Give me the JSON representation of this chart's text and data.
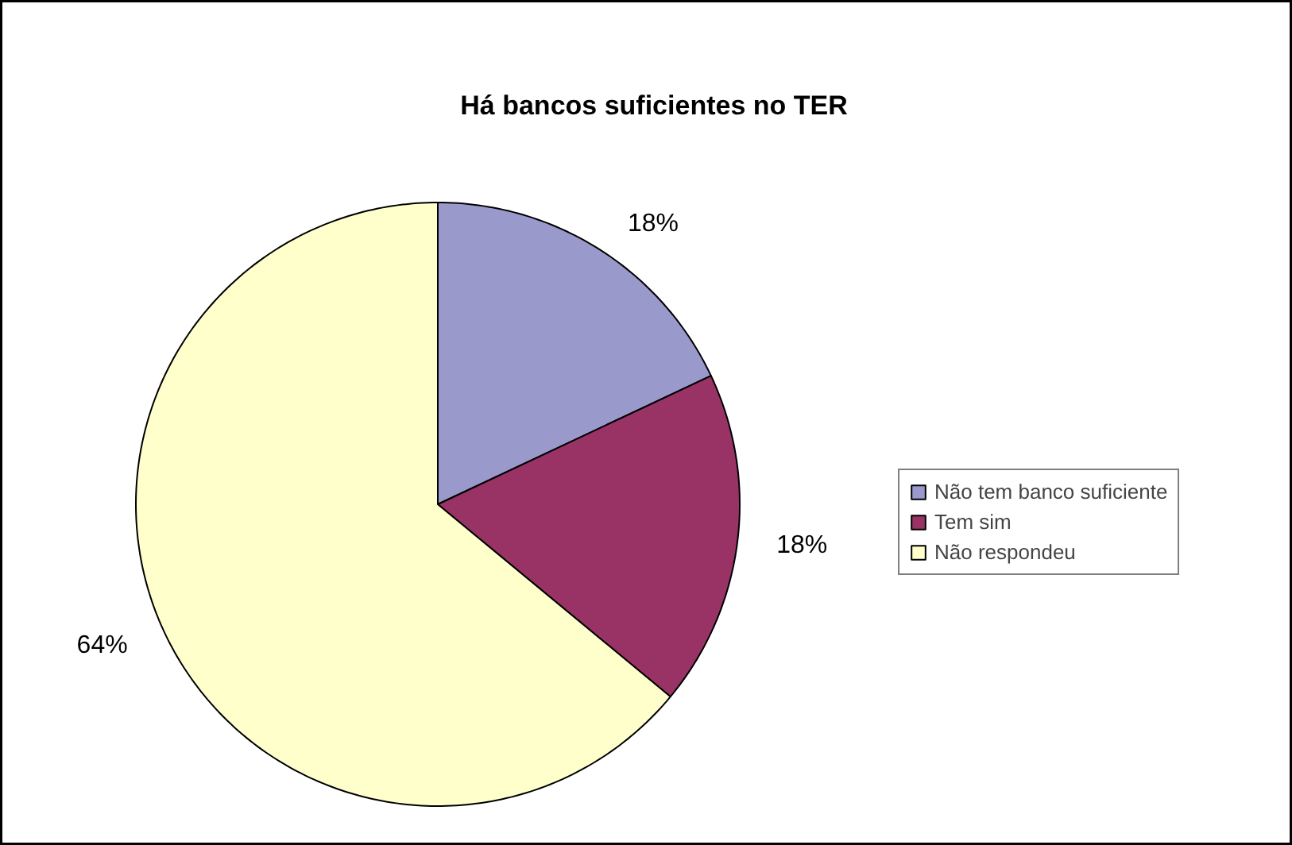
{
  "chart_data": {
    "type": "pie",
    "title": "Há bancos suficientes no TER",
    "categories": [
      "Não tem banco suficiente",
      "Tem sim",
      "Não respondeu"
    ],
    "values": [
      18,
      18,
      64
    ],
    "colors": [
      "#9999cc",
      "#993366",
      "#ffffcc"
    ],
    "value_labels": [
      "18%",
      "18%",
      "64%"
    ],
    "legend": "right"
  }
}
